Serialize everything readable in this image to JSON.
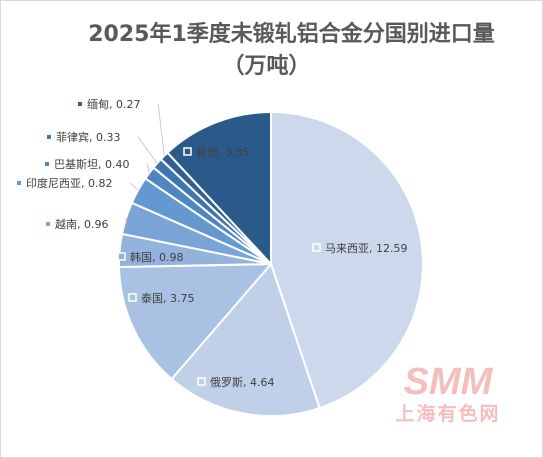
{
  "chart_data": {
    "type": "pie",
    "title_line1": "2025年1季度未锻轧铝合金分国别进口量",
    "title_line2": "（万吨）",
    "series": [
      {
        "name": "马来西亚",
        "value": 12.59,
        "color": "#ccd9ec"
      },
      {
        "name": "俄罗斯",
        "value": 4.64,
        "color": "#c0d0e9"
      },
      {
        "name": "泰国",
        "value": 3.75,
        "color": "#a9c1e3"
      },
      {
        "name": "韩国",
        "value": 0.98,
        "color": "#93b3de"
      },
      {
        "name": "越南",
        "value": 0.96,
        "color": "#7ba4d6"
      },
      {
        "name": "印度尼西亚",
        "value": 0.82,
        "color": "#6598d0"
      },
      {
        "name": "巴基斯坦",
        "value": 0.4,
        "color": "#4f86c2"
      },
      {
        "name": "菲律宾",
        "value": 0.33,
        "color": "#3f76b0"
      },
      {
        "name": "缅甸",
        "value": 0.27,
        "color": "#335f92"
      },
      {
        "name": "其他",
        "value": 3.35,
        "color": "#2b5a8a"
      }
    ]
  },
  "watermark": {
    "logo": "SMM",
    "text": "上海有色网",
    "color": "#f5b8b8"
  }
}
